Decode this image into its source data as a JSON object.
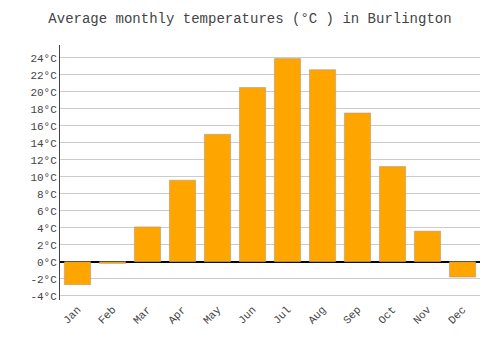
{
  "chart_data": {
    "type": "bar",
    "title": "Average monthly temperatures (°C ) in Burlington",
    "categories": [
      "Jan",
      "Feb",
      "Mar",
      "Apr",
      "May",
      "Jun",
      "Jul",
      "Aug",
      "Sep",
      "Oct",
      "Nov",
      "Dec"
    ],
    "values": [
      -2.7,
      -0.2,
      4.1,
      9.6,
      15.0,
      20.5,
      23.9,
      22.6,
      17.5,
      11.2,
      3.6,
      -1.8
    ],
    "color": "#FFA500",
    "ylim": [
      -4.5,
      25.5
    ],
    "yticks": [
      {
        "value": -4,
        "label": "-4°C"
      },
      {
        "value": -2,
        "label": "-2°C"
      },
      {
        "value": 0,
        "label": "0°C"
      },
      {
        "value": 2,
        "label": "2°C"
      },
      {
        "value": 4,
        "label": "4°C"
      },
      {
        "value": 6,
        "label": "6°C"
      },
      {
        "value": 8,
        "label": "8°C"
      },
      {
        "value": 10,
        "label": "10°C"
      },
      {
        "value": 12,
        "label": "12°C"
      },
      {
        "value": 14,
        "label": "14°C"
      },
      {
        "value": 16,
        "label": "16°C"
      },
      {
        "value": 18,
        "label": "18°C"
      },
      {
        "value": 20,
        "label": "20°C"
      },
      {
        "value": 22,
        "label": "22°C"
      },
      {
        "value": 24,
        "label": "24°C"
      }
    ],
    "grid": true
  }
}
